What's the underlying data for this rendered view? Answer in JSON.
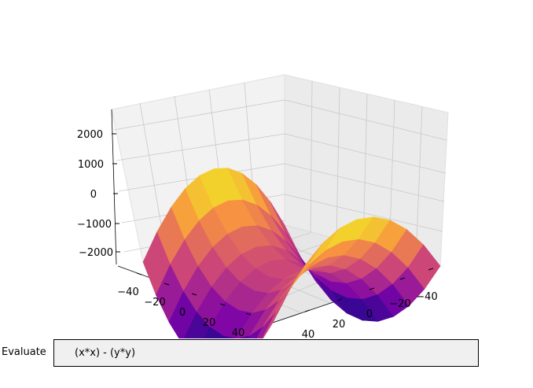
{
  "chart_data": {
    "type": "surface",
    "function": "x*x - y*y",
    "x_range": [
      -50,
      50
    ],
    "y_range": [
      -50,
      50
    ],
    "grid_steps": 10,
    "colormap": "plasma",
    "z_ticks": [
      "2000",
      "1000",
      "0",
      "−1000",
      "−2000"
    ],
    "x_ticks": [
      "−40",
      "−20",
      "0",
      "20",
      "40"
    ],
    "y_ticks": [
      "40",
      "20",
      "0",
      "−20",
      "−40"
    ],
    "grid": true,
    "pane_color": "#f2f2f2",
    "grid_color": "#c8c8c8"
  },
  "evaluate": {
    "label": "Evaluate",
    "expression": "(x*x) - (y*y)"
  }
}
